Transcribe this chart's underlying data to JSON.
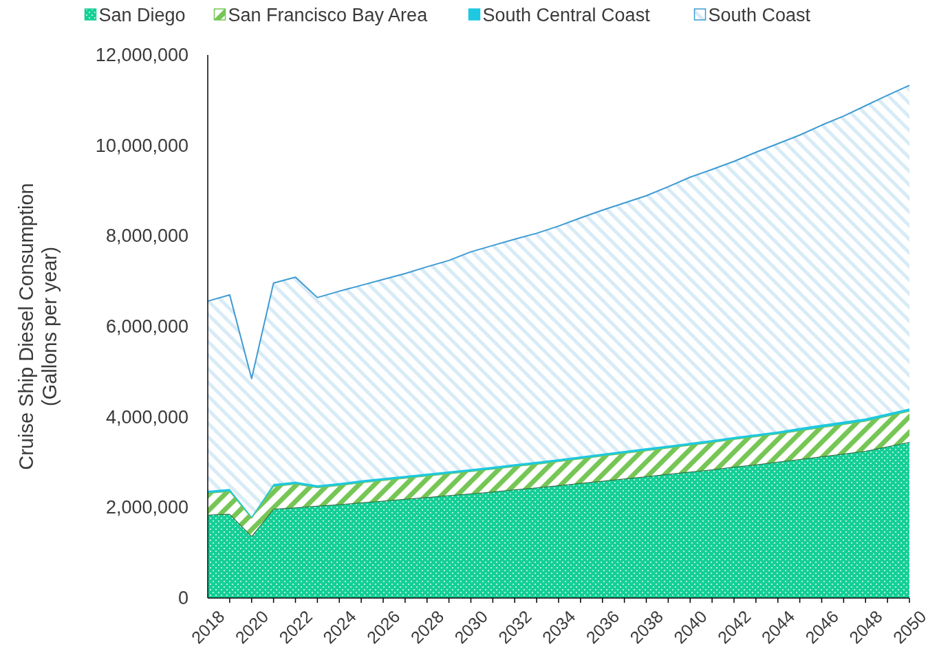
{
  "chart_data": {
    "type": "area",
    "stacked": true,
    "ylabel": "Cruise Ship Diesel Consumption\n(Gallons per year)",
    "x": [
      2018,
      2019,
      2020,
      2021,
      2022,
      2023,
      2024,
      2025,
      2026,
      2027,
      2028,
      2029,
      2030,
      2031,
      2032,
      2033,
      2034,
      2035,
      2036,
      2037,
      2038,
      2039,
      2040,
      2041,
      2042,
      2043,
      2044,
      2045,
      2046,
      2047,
      2048,
      2049,
      2050
    ],
    "series": [
      {
        "name": "San Diego",
        "color": "#14cf96",
        "values": [
          1840000,
          1860000,
          1370000,
          1970000,
          2000000,
          2040000,
          2070000,
          2110000,
          2150000,
          2190000,
          2230000,
          2270000,
          2310000,
          2350000,
          2400000,
          2440000,
          2490000,
          2540000,
          2590000,
          2640000,
          2690000,
          2740000,
          2790000,
          2840000,
          2900000,
          2950000,
          3010000,
          3070000,
          3130000,
          3190000,
          3250000,
          3350000,
          3450000
        ]
      },
      {
        "name": "San Francisco Bay Area",
        "color": "#76c655",
        "values": [
          480000,
          500000,
          400000,
          500000,
          520000,
          400000,
          420000,
          440000,
          450000,
          460000,
          470000,
          480000,
          490000,
          500000,
          510000,
          520000,
          530000,
          540000,
          550000,
          560000,
          570000,
          580000,
          590000,
          600000,
          610000,
          620000,
          620000,
          630000,
          640000,
          650000,
          660000,
          670000,
          680000
        ]
      },
      {
        "name": "South Central Coast",
        "color": "#1ec8e0",
        "values": [
          50000,
          50000,
          30000,
          50000,
          50000,
          50000,
          50000,
          50000,
          50000,
          50000,
          50000,
          50000,
          50000,
          50000,
          50000,
          50000,
          50000,
          50000,
          50000,
          50000,
          50000,
          50000,
          50000,
          50000,
          50000,
          50000,
          50000,
          60000,
          60000,
          60000,
          60000,
          60000,
          60000
        ]
      },
      {
        "name": "South Coast",
        "color": "#3d9ad3",
        "values": [
          4190000,
          4290000,
          3050000,
          4440000,
          4520000,
          4150000,
          4240000,
          4310000,
          4390000,
          4470000,
          4570000,
          4660000,
          4800000,
          4890000,
          4970000,
          5050000,
          5150000,
          5270000,
          5380000,
          5480000,
          5580000,
          5720000,
          5870000,
          5980000,
          6090000,
          6230000,
          6360000,
          6470000,
          6620000,
          6750000,
          6910000,
          7030000,
          7140000
        ]
      }
    ],
    "xlim": [
      2018,
      2050
    ],
    "xticks": [
      2018,
      {
        "value": 2019,
        "label": null
      },
      2020,
      {
        "value": 2021,
        "label": null
      },
      2022,
      {
        "value": 2023,
        "label": null
      },
      2024,
      {
        "value": 2025,
        "label": null
      },
      2026,
      {
        "value": 2027,
        "label": null
      },
      2028,
      {
        "value": 2029,
        "label": null
      },
      2030,
      {
        "value": 2031,
        "label": null
      },
      2032,
      {
        "value": 2033,
        "label": null
      },
      2034,
      {
        "value": 2035,
        "label": null
      },
      2036,
      {
        "value": 2037,
        "label": null
      },
      2038,
      {
        "value": 2039,
        "label": null
      },
      2040,
      {
        "value": 2041,
        "label": null
      },
      2042,
      {
        "value": 2043,
        "label": null
      },
      2044,
      {
        "value": 2045,
        "label": null
      },
      2046,
      {
        "value": 2047,
        "label": null
      },
      2048,
      {
        "value": 2049,
        "label": null
      },
      2050
    ],
    "ylim": [
      0,
      12000000
    ],
    "yticks": [
      0,
      {
        "value": 2000000,
        "label": "2,000,000"
      },
      {
        "value": 4000000,
        "label": "4,000,000"
      },
      {
        "value": 6000000,
        "label": "6,000,000"
      },
      {
        "value": 8000000,
        "label": "8,000,000"
      },
      {
        "value": 10000000,
        "label": "10,000,000"
      },
      {
        "value": 12000000,
        "label": "12,000,000"
      }
    ],
    "legend": "top"
  }
}
